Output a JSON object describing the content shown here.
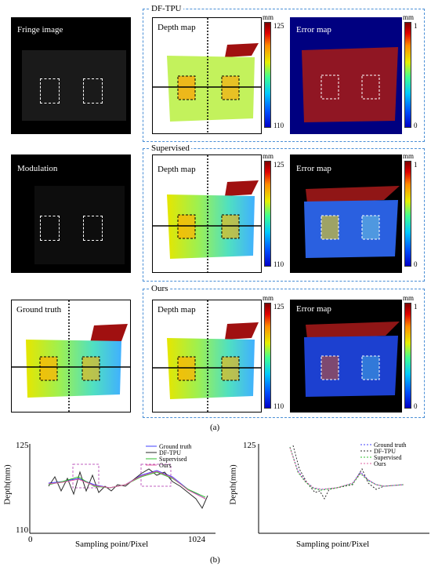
{
  "panel_a": {
    "fringe_label": "Fringe image",
    "modulation_label": "Modulation",
    "gt_label": "Ground truth",
    "depth_label": "Depth map",
    "error_label": "Error map",
    "groups": [
      "DF-TPU",
      "Supervised",
      "Ours"
    ],
    "depth_unit": "mm",
    "depth_max": "125",
    "depth_min": "110",
    "error_unit": "mm",
    "error_max": "1",
    "error_min": "0",
    "caption": "(a)"
  },
  "panel_b": {
    "caption": "(b)",
    "ylabel": "Depth(mm)",
    "xlabel": "Sampling point/Pixel",
    "ytop": "125",
    "ybottom": "110",
    "xleft": "0",
    "xright": "1024",
    "legend": [
      "Ground truth",
      "DF-TPU",
      "Supervised",
      "Ours"
    ],
    "series_colors": [
      "#4040ff",
      "#2a2a2a",
      "#30c030",
      "#e060a0"
    ]
  }
}
